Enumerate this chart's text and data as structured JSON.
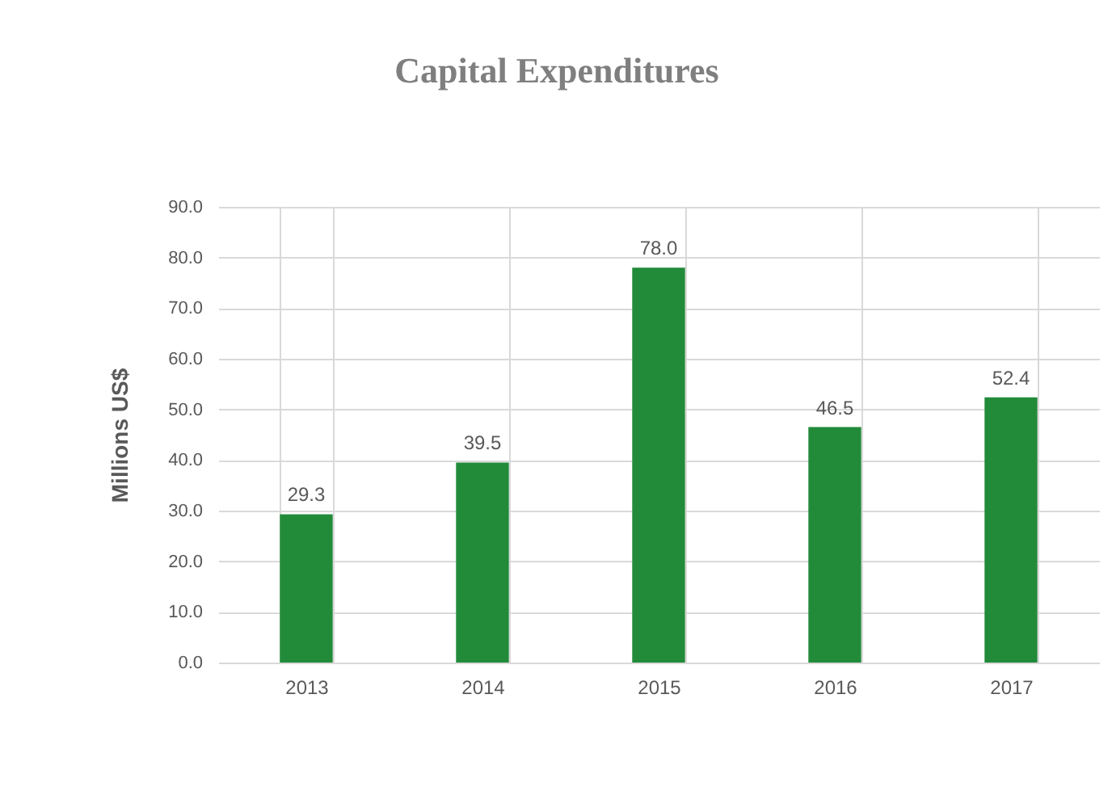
{
  "chart_data": {
    "type": "bar",
    "title": "Capital Expenditures",
    "ylabel": "Millions US$",
    "categories": [
      "2013",
      "2014",
      "2015",
      "2016",
      "2017"
    ],
    "values": [
      29.3,
      39.5,
      78.0,
      46.5,
      52.4
    ],
    "value_labels": [
      "29.3",
      "39.5",
      "78.0",
      "46.5",
      "52.4"
    ],
    "color": "#228b3a",
    "ylim": [
      0,
      90
    ],
    "yticks": [
      {
        "value": 0,
        "label": "0.0"
      },
      {
        "value": 10,
        "label": "10.0"
      },
      {
        "value": 20,
        "label": "20.0"
      },
      {
        "value": 30,
        "label": "30.0"
      },
      {
        "value": 40,
        "label": "40.0"
      },
      {
        "value": 50,
        "label": "50.0"
      },
      {
        "value": 60,
        "label": "60.0"
      },
      {
        "value": 70,
        "label": "70.0"
      },
      {
        "value": 80,
        "label": "80.0"
      },
      {
        "value": 90,
        "label": "90.0"
      }
    ],
    "grid": true
  }
}
